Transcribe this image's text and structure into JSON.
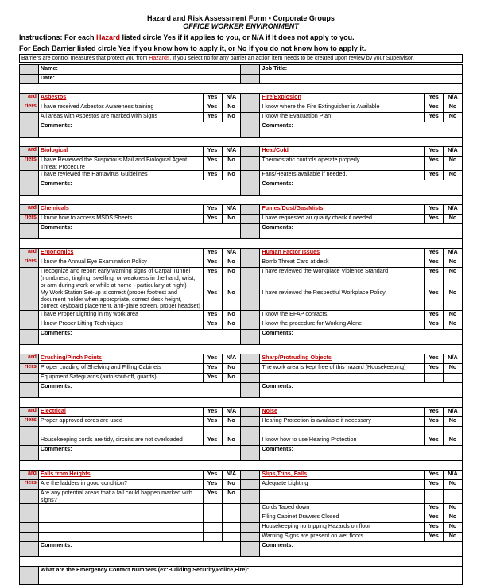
{
  "header": {
    "title": "Hazard and Risk Assessment Form • Corporate Groups",
    "subtitle": "OFFICE WORKER ENVIRONMENT"
  },
  "instructions": {
    "line1a": "Instructions:  For each ",
    "hazard": "Hazard",
    "line1b": " listed circle ",
    "yes": "Yes",
    "line1c": " if it applies to you, or ",
    "na": "N/A",
    "line1d": " if it does not apply to you.",
    "line2a": "For Each Barrier listed circle ",
    "line2b": " if you know how to apply it, or ",
    "no": "No",
    "line2c": " if you do not know how to apply it."
  },
  "barrierNote": {
    "a": "Barriers are control measures that protect you from ",
    "haz": "Hazards",
    "b": ". If you select no for any barrier an action item needs to be created upon review by your Supervisor."
  },
  "labels": {
    "name": "Name:",
    "jobtitle": "Job Title:",
    "date": "Date:",
    "comments": "Comments:",
    "yes": "Yes",
    "no": "No",
    "na": "N/A",
    "hazard": "ard",
    "barrier": "riers"
  },
  "sections": [
    {
      "leftTitle": "Asbestos",
      "rightTitle": "Fire/Explosion",
      "left": [
        {
          "t": "I have received Asbestos Awareness training",
          "tag": "barrier",
          "yn": "yesno"
        },
        {
          "t": "All areas with Asbestos are marked with Signs",
          "tag": "barrier",
          "yn": "yesno"
        }
      ],
      "right": [
        {
          "t": "I know where the Fire Extinguisher is Available",
          "tag": "",
          "yn": "yesno"
        },
        {
          "t": "I know the Evacuation Plan",
          "tag": "",
          "yn": "yesno"
        }
      ],
      "comments": true
    },
    {
      "leftTitle": "Biological",
      "rightTitle": "Heat/Cold",
      "left": [
        {
          "t": "I have Reviewed the Suspicious Mail and Biological Agent Threat Procedure",
          "tag": "barrier",
          "yn": "yesno",
          "tall": true
        },
        {
          "t": "I have reviewed the Hantavirus Guidelines",
          "tag": "barrier",
          "yn": "yesno"
        }
      ],
      "right": [
        {
          "t": "Thermostatic controls operate properly",
          "tag": "",
          "yn": "yesno",
          "tall": true
        },
        {
          "t": "Fans/Heaters available if needed.",
          "tag": "",
          "yn": "yesno"
        }
      ],
      "comments": true
    },
    {
      "leftTitle": "Chemicals",
      "rightTitle": "Fumes/Dust/Gas/Mists",
      "left": [
        {
          "t": "I know how to access MSDS Sheets",
          "tag": "barrier",
          "yn": "yesno"
        }
      ],
      "right": [
        {
          "t": "I have requested air quality check if needed.",
          "tag": "",
          "yn": "yesno"
        }
      ],
      "comments": true,
      "commentsSplit": true
    },
    {
      "leftTitle": "Ergonomics",
      "rightTitle": "Human Factor Issues",
      "left": [
        {
          "t": "I know the Annual Eye Examination Policy",
          "tag": "barrier",
          "yn": "yesno"
        },
        {
          "t": "I recognize and report early warning signs of Carpal Tunnel (numbness, tingling, swelling, or weakness in the hand, wrist, or arm during work or while at home - particularly at night)",
          "tag": "barrier",
          "yn": "yesno",
          "tall": true
        },
        {
          "t": "My Work Station Set-up is correct (proper footrest and document holder when appropriate, correct desk height, correct keyboard placement, anti-glare screen, proper headset)",
          "tag": "barrier",
          "yn": "yesno",
          "tall": true
        },
        {
          "t": "I have Proper Lighting in my work area",
          "tag": "barrier",
          "yn": "yesno"
        },
        {
          "t": "I know Proper Lifting Techniques",
          "tag": "barrier",
          "yn": "yesno"
        }
      ],
      "right": [
        {
          "t": "Bomb Threat Card at desk",
          "tag": "",
          "yn": "yesno"
        },
        {
          "t": "I have reviewed the Workplace Violence Standard",
          "tag": "",
          "yn": "yesno",
          "tall": true
        },
        {
          "t": "I have reviewed the Respectful Workplace Policy",
          "tag": "",
          "yn": "yesno",
          "tall": true
        },
        {
          "t": "I know the EFAP contacts.",
          "tag": "",
          "yn": "yesno"
        },
        {
          "t": "I know the procedure for Working Alone",
          "tag": "",
          "yn": "yesno"
        }
      ],
      "comments": true
    },
    {
      "leftTitle": "Crushing/Pinch Points",
      "rightTitle": "Sharp/Protruding Objects",
      "left": [
        {
          "t": "Proper Loading of Shelving and Filling Cabinets",
          "tag": "barrier",
          "yn": "yesno"
        },
        {
          "t": "Equipment Safeguards (auto shut-off, guards)",
          "tag": "barrier",
          "yn": "yesno"
        }
      ],
      "right": [
        {
          "t": "The work area is kept free of this hazard (Housekeeping)",
          "tag": "",
          "yn": "yesno"
        },
        {
          "t": "",
          "tag": "",
          "yn": ""
        }
      ],
      "comments": true
    },
    {
      "leftTitle": "Electrical",
      "rightTitle": "Noise",
      "left": [
        {
          "t": "Proper approved cords are used",
          "tag": "barrier",
          "yn": "yesno"
        },
        {
          "t": "",
          "tag": "",
          "yn": ""
        },
        {
          "t": "Housekeeping cords are tidy, circuits are not overloaded",
          "tag": "barrier",
          "yn": "yesno"
        }
      ],
      "right": [
        {
          "t": "Hearing Protection is available if necessary",
          "tag": "",
          "yn": "yesno"
        },
        {
          "t": "",
          "tag": "",
          "yn": ""
        },
        {
          "t": "I know how to use Hearing Protection",
          "tag": "",
          "yn": "yesno"
        }
      ],
      "comments": true
    },
    {
      "leftTitle": "Falls from Heights",
      "rightTitle": "Slips,Trips, Falls",
      "left": [
        {
          "t": "Are the ladders in good condition?",
          "tag": "barrier",
          "yn": "yesno"
        },
        {
          "t": "Are any potential areas that a fall could happen marked with signs?",
          "tag": "barrier",
          "yn": "yesno",
          "tall": true
        },
        {
          "t": "",
          "tag": "",
          "yn": ""
        },
        {
          "t": "",
          "tag": "",
          "yn": ""
        },
        {
          "t": "",
          "tag": "",
          "yn": ""
        }
      ],
      "right": [
        {
          "t": "Adequate Lighting",
          "tag": "",
          "yn": "yesno"
        },
        {
          "t": "",
          "tag": "",
          "yn": "",
          "tall": true
        },
        {
          "t": "Cords Taped down",
          "tag": "",
          "yn": "yesno"
        },
        {
          "t": "Filing Cabinet Drawers Closed",
          "tag": "",
          "yn": "yesno"
        },
        {
          "t": "Housekeeping no tripping Hazards on floor",
          "tag": "",
          "yn": "yesno"
        },
        {
          "t": "Warning Signs are present on wet floors",
          "tag": "",
          "yn": "yesno"
        }
      ],
      "comments": true,
      "leftExtra2": {
        "t": "",
        "yn": ""
      }
    }
  ],
  "footer": "What are the Emergency Contact Numbers (ex:Building Security,Police,Fire):"
}
